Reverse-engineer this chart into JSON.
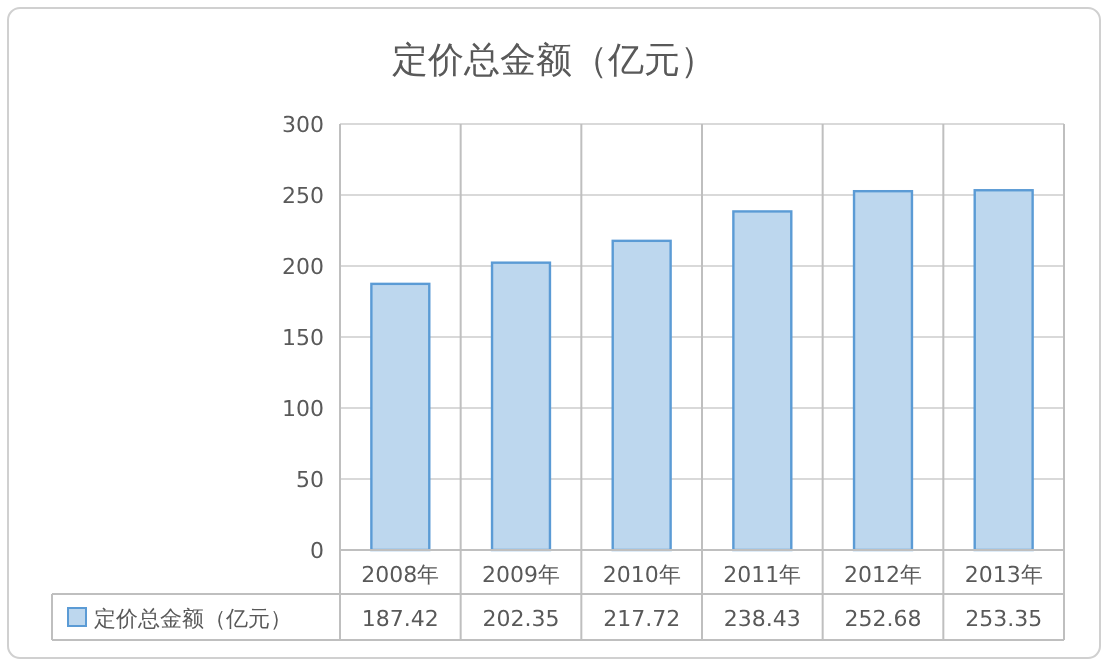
{
  "chart_data": {
    "type": "bar",
    "title": "定价总金额（亿元）",
    "categories": [
      "2008年",
      "2009年",
      "2010年",
      "2011年",
      "2012年",
      "2013年"
    ],
    "series": [
      {
        "name": "定价总金额（亿元）",
        "color": "#bdd7ee",
        "values": [
          187.42,
          202.35,
          217.72,
          238.43,
          252.68,
          253.35
        ]
      }
    ],
    "ylim": [
      0,
      300
    ],
    "yticks": [
      0,
      50,
      100,
      150,
      200,
      250,
      300
    ],
    "grid": "y",
    "data_labels": true,
    "legend": "bottom"
  }
}
